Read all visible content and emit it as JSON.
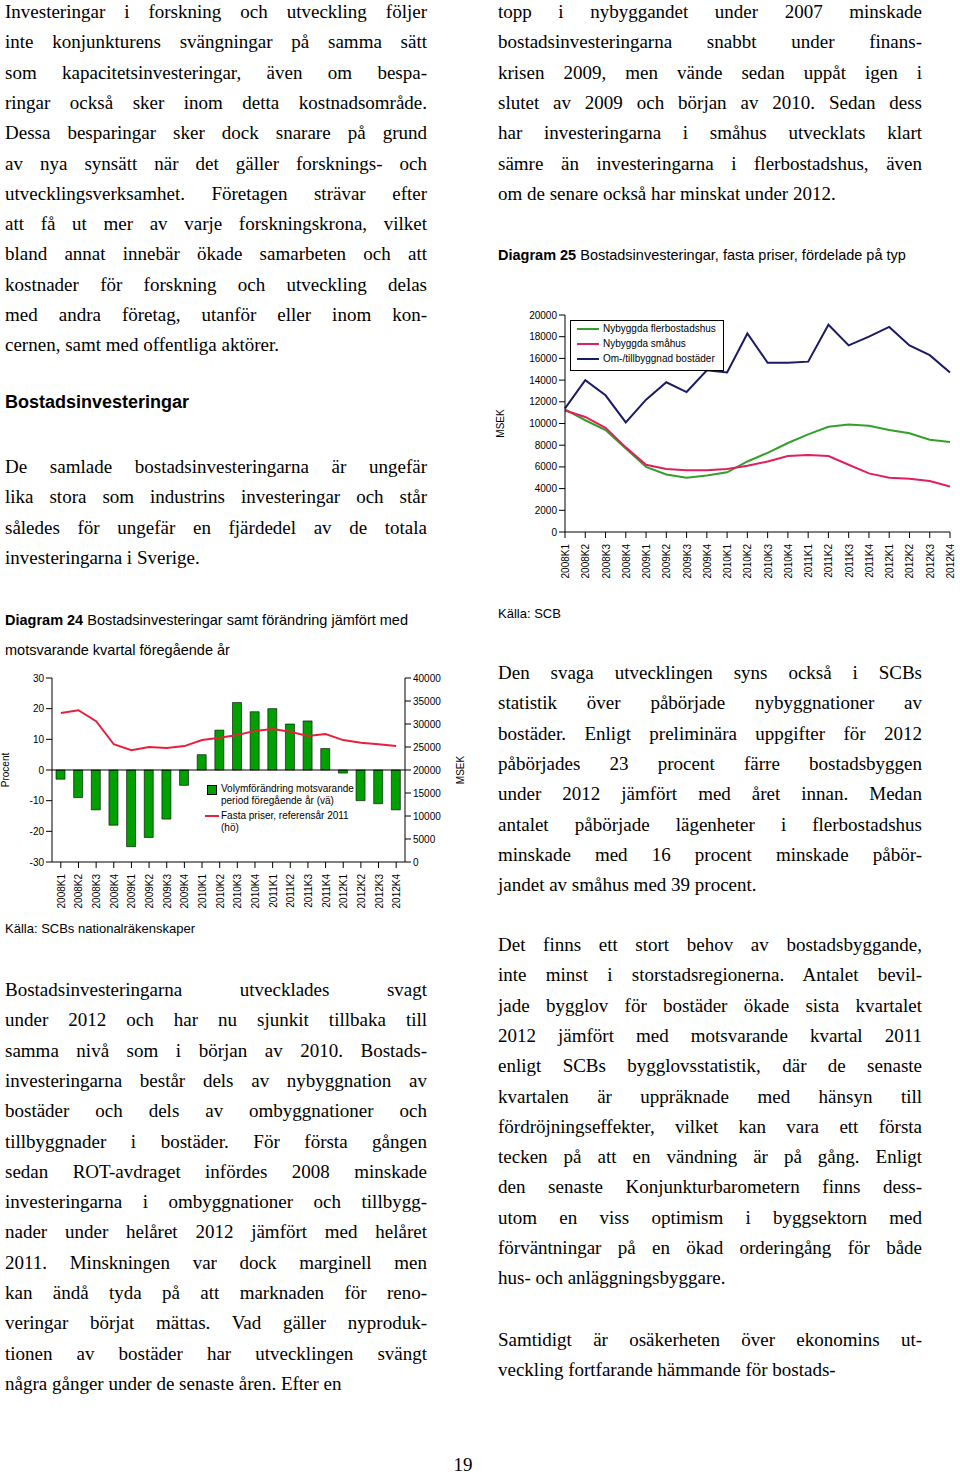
{
  "document": {
    "paragraph_1": [
      "Investeringar i forskning och utveckling följer",
      "inte konjunkturens svängningar på samma sätt",
      "som kapacitetsinvesteringar, även om bespa-",
      "ringar också sker inom detta kostnadsområde.",
      "Dessa besparingar sker dock snarare på grund",
      "av nya synsätt när det gäller forsknings- och",
      "utvecklingsverksamhet. Företagen strävar efter",
      "att få ut mer av varje forskningskrona, vilket",
      "bland annat innebär ökade samarbeten och att",
      "kostnader för forskning och utveckling delas",
      "med andra företag, utanför eller inom kon-",
      "cernen, samt med offentliga aktörer."
    ],
    "heading": "Bostadsinvesteringar",
    "paragraph_2": [
      "De samlade bostadsinvesteringarna är ungefär",
      "lika stora som industrins investeringar och står",
      "således för ungefär en fjärdedel av de totala",
      "investeringarna i Sverige."
    ],
    "paragraph_3": [
      "Bostadsinvesteringarna utvecklades svagt",
      "under 2012 och har nu sjunkit tillbaka till",
      "samma nivå som i början av 2010. Bostads-",
      "investeringarna består dels av nybyggnation av",
      "bostäder och dels av ombyggnationer och",
      "tillbyggnader i bostäder. För första gången",
      "sedan ROT-avdraget infördes 2008 minskade",
      "investeringarna i ombyggnationer och tillbygg-",
      "nader under helåret 2012 jämfört med helåret",
      "2011. Minskningen var dock marginell men",
      "kan ändå tyda på att marknaden för reno-",
      "veringar börjat mättas. Vad gäller nyproduk-",
      "tionen av bostäder har utvecklingen svängt",
      "några gånger under de senaste åren. Efter en"
    ],
    "paragraph_3_continued": [
      "topp i nybyggandet under 2007 minskade",
      "bostadsinvesteringarna snabbt under finans-",
      "krisen 2009, men vände sedan uppåt igen i",
      "slutet av 2009 och början av 2010. Sedan dess",
      "har investeringarna i småhus utvecklats klart",
      "sämre än investeringarna i flerbostadshus, även",
      "om de senare också har minskat under 2012."
    ],
    "paragraph_4": [
      "Den svaga utvecklingen syns också i SCBs",
      "statistik över påbörjade nybyggnationer av",
      "bostäder. Enligt preliminära uppgifter för 2012",
      "påbörjades 23 procent färre bostadsbyggen",
      "under 2012 jämfört med året innan. Medan",
      "antalet påbörjade lägenheter i flerbostadshus",
      "minskade med 16 procent minskade påbör-",
      "jandet av småhus med 39 procent."
    ],
    "paragraph_5": [
      "Det finns ett stort behov av bostadsbyggande,",
      "inte minst i storstadsregionerna. Antalet bevil-",
      "jade bygglov för bostäder ökade sista kvartalet",
      "2012 jämfört med motsvarande kvartal 2011",
      "enligt SCBs bygglovsstatistik, där de senaste",
      "kvartalen är uppräknade med hänsyn till",
      "fördröjningseffekter, vilket kan vara ett första",
      "tecken på att en vändning är på gång. Enligt",
      "den senaste Konjunkturbarometern finns dess-",
      "utom en viss optimism i byggsektorn med",
      "förväntningar på en ökad orderingång för både",
      "hus- och anläggningsbyggare."
    ],
    "paragraph_6": [
      "Samtidigt är osäkerheten över ekonomins ut-",
      "veckling fortfarande hämmande för bostads-"
    ],
    "page_number": "19"
  },
  "chart_data": [
    {
      "type": "bar",
      "figure_label": "Diagram 24",
      "title": "Bostadsinvesteringar samt förändring jämfört med motsvarande kvartal föregående år",
      "source": "Källa: SCBs nationalräkenskaper",
      "categories": [
        "2008K1",
        "2008K2",
        "2008K3",
        "2008K4",
        "2009K1",
        "2009K2",
        "2009K3",
        "2009K4",
        "2010K1",
        "2010K2",
        "2010K3",
        "2010K4",
        "2011K1",
        "2011K2",
        "2011K3",
        "2011K4",
        "2012K1",
        "2012K2",
        "2012K3",
        "2012K4"
      ],
      "series": [
        {
          "name": "Volymförändring motsvarande period föregående år (vä)",
          "type": "bar",
          "color": "#00a000",
          "values": [
            -3,
            -9,
            -13,
            -18,
            -25,
            -22,
            -16,
            -5,
            5,
            13,
            22,
            19,
            20,
            15,
            16,
            7,
            -1,
            -10,
            -11,
            -13
          ]
        },
        {
          "name": "Fasta priser, referensår 2011 (hö)",
          "type": "line",
          "color": "#e8203c",
          "axis": "y2",
          "values": [
            32400,
            33000,
            30600,
            25600,
            24300,
            25000,
            24800,
            25200,
            26500,
            27000,
            27600,
            28500,
            28900,
            28300,
            27400,
            27800,
            26500,
            25900,
            25600,
            25200
          ]
        }
      ],
      "ylabel": "Procent",
      "ylim": [
        -30,
        30
      ],
      "yticks": [
        -30,
        -20,
        -10,
        0,
        10,
        20,
        30
      ],
      "y2label": "MSEK",
      "y2lim": [
        0,
        40000
      ],
      "y2ticks": [
        0,
        5000,
        10000,
        15000,
        20000,
        25000,
        30000,
        35000,
        40000
      ],
      "grid": false
    },
    {
      "type": "line",
      "figure_label": "Diagram 25",
      "title": "Bostadsinvesteringar, fasta priser, fördelade på typ",
      "source": "Källa: SCB",
      "categories": [
        "2008K1",
        "2008K2",
        "2008K3",
        "2008K4",
        "2009K1",
        "2009K2",
        "2009K3",
        "2009K4",
        "2010K1",
        "2010K2",
        "2010K3",
        "2010K4",
        "2011K1",
        "2011K2",
        "2011K3",
        "2011K4",
        "2012K1",
        "2012K2",
        "2012K3",
        "2012K4"
      ],
      "series": [
        {
          "name": "Nybyggda flerbostadshus",
          "color": "#33a02c",
          "values": [
            11300,
            10300,
            9400,
            7700,
            6000,
            5300,
            5000,
            5200,
            5500,
            6500,
            7300,
            8200,
            9000,
            9700,
            9900,
            9800,
            9400,
            9100,
            8500,
            8300
          ]
        },
        {
          "name": "Nybyggda småhus",
          "color": "#e0205a",
          "values": [
            11200,
            10600,
            9600,
            7800,
            6200,
            5800,
            5700,
            5700,
            5800,
            6100,
            6500,
            7000,
            7100,
            7000,
            6200,
            5400,
            5000,
            4900,
            4700,
            4200
          ]
        },
        {
          "name": "Om-/tillbyggnad bostäder",
          "color": "#1a1a66",
          "values": [
            11400,
            14000,
            12600,
            10100,
            12200,
            13800,
            12900,
            14900,
            14700,
            18300,
            15600,
            15600,
            15700,
            19100,
            17200,
            18000,
            18900,
            17200,
            16300,
            14700
          ]
        }
      ],
      "ylabel": "MSEK",
      "ylim": [
        0,
        20000
      ],
      "yticks": [
        0,
        2000,
        4000,
        6000,
        8000,
        10000,
        12000,
        14000,
        16000,
        18000,
        20000
      ],
      "grid": false
    }
  ]
}
